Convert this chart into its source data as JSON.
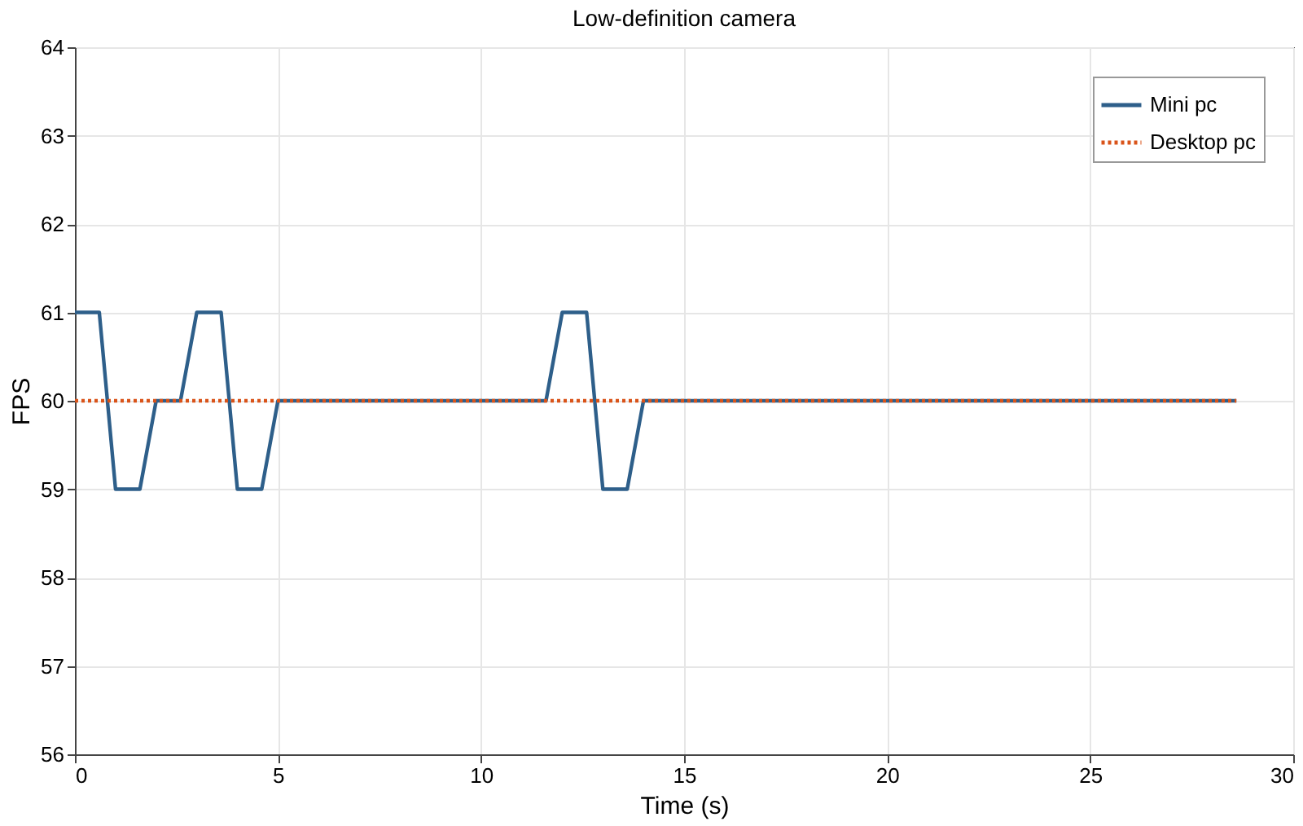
{
  "chart_data": {
    "type": "line",
    "title": "Low-definition camera",
    "xlabel": "Time (s)",
    "ylabel": "FPS",
    "xlim": [
      0,
      30
    ],
    "xticks": [
      0,
      5,
      10,
      15,
      20,
      25,
      30
    ],
    "ylim": [
      56,
      64
    ],
    "yticks": [
      56,
      57,
      58,
      59,
      60,
      61,
      62,
      63,
      64
    ],
    "grid": true,
    "legend": "top right",
    "series": [
      {
        "name": "Mini pc",
        "color": "#2e5f8a",
        "line_style": "solid",
        "x": [
          0,
          0.6,
          1.0,
          1.6,
          2.0,
          2.6,
          3.0,
          3.6,
          4.0,
          4.6,
          5.0,
          11.6,
          12.0,
          12.6,
          13.0,
          13.6,
          14.0,
          28.6
        ],
        "values": [
          61,
          61,
          59,
          59,
          60,
          60,
          61,
          61,
          59,
          59,
          60,
          60,
          61,
          61,
          59,
          59,
          60,
          60
        ]
      },
      {
        "name": "Desktop pc",
        "color": "#d95319",
        "line_style": "dotted",
        "x": [
          0,
          28.6
        ],
        "values": [
          60,
          60
        ]
      }
    ]
  }
}
